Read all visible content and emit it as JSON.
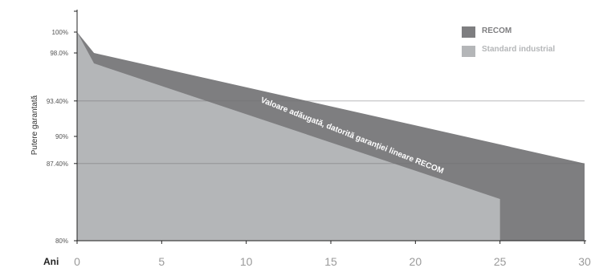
{
  "chart_data": {
    "type": "area",
    "title": "",
    "xlabel": "Ani",
    "ylabel": "Putere garantată",
    "xlim": [
      0,
      30
    ],
    "ylim": [
      80,
      100
    ],
    "x_ticks": [
      "0",
      "5",
      "10",
      "15",
      "20",
      "25",
      "30"
    ],
    "y_ticks": [
      {
        "value": 100,
        "label": "100%"
      },
      {
        "value": 98.0,
        "label": "98.0%"
      },
      {
        "value": 93.4,
        "label": "93.40%"
      },
      {
        "value": 90,
        "label": "90%"
      },
      {
        "value": 87.4,
        "label": "87.40%"
      },
      {
        "value": 80,
        "label": "80%"
      }
    ],
    "gridlines_y": [
      93.4,
      87.4
    ],
    "series": [
      {
        "name": "RECOM",
        "color": "#7e7e80",
        "points": [
          [
            0,
            100
          ],
          [
            1,
            98.0
          ],
          [
            30,
            87.4
          ]
        ]
      },
      {
        "name": "Standard industrial",
        "color": "#b4b6b8",
        "points": [
          [
            0,
            100
          ],
          [
            1,
            97.0
          ],
          [
            25,
            84.0
          ]
        ]
      }
    ],
    "annotation": "Valoare adăugată, datorită garanției lineare RECOM",
    "legend_position": "top-right"
  }
}
